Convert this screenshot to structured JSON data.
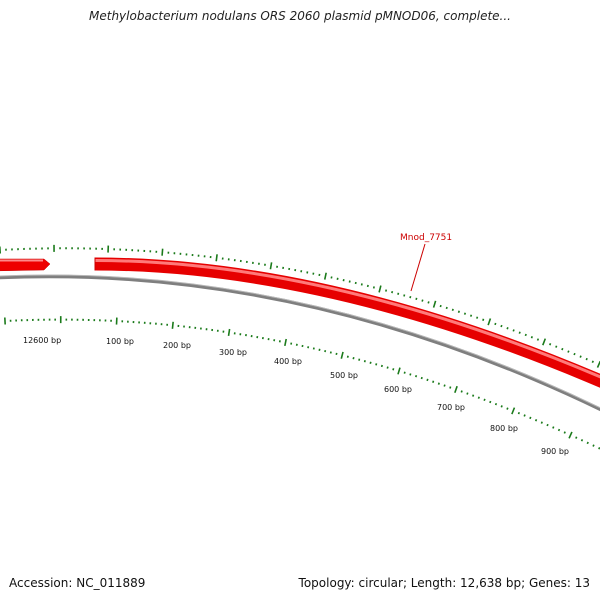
{
  "title": "Methylobacterium nodulans ORS 2060 plasmid pMNOD06, complete...",
  "footer": {
    "accession": "Accession: NC_011889",
    "summary": "Topology: circular; Length: 12,638 bp; Genes: 13"
  },
  "gene_label": "Mnod_7751",
  "tick_labels": [
    "12600 bp",
    "100 bp",
    "200 bp",
    "300 bp",
    "400 bp",
    "500 bp",
    "600 bp",
    "700 bp",
    "800 bp",
    "900 bp"
  ],
  "colors": {
    "gene": "#ee0000",
    "gene_highlight": "#ff8a8a",
    "backbone": "#808080",
    "ticks": "#1a7a1a",
    "label": "#cc0000"
  }
}
